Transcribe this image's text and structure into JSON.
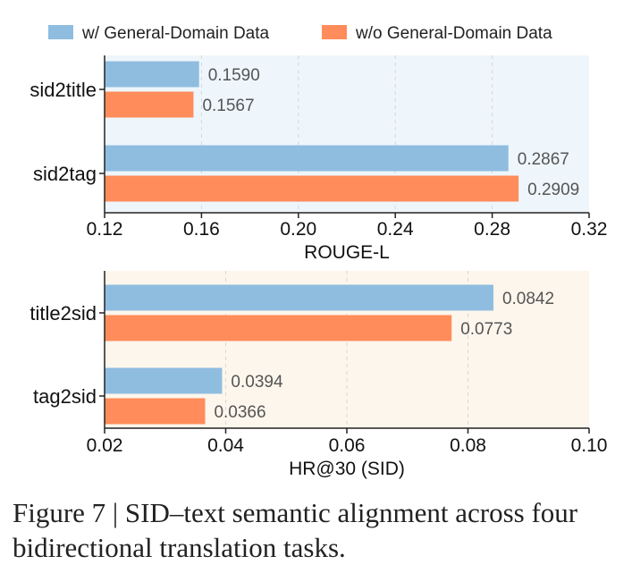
{
  "legend": {
    "items": [
      {
        "label": "w/ General-Domain Data",
        "color": "#8fbde0"
      },
      {
        "label": "w/o General-Domain Data",
        "color": "#ff8c5a"
      }
    ]
  },
  "caption": "Figure 7 | SID–text semantic alignment across four bidirectional translation tasks.",
  "colors": {
    "with": "#8fbde0",
    "without": "#ff8c5a",
    "panel_top_bg": "#eef6fc",
    "panel_bottom_bg": "#fdf6ec",
    "value_text": "#555555"
  },
  "chart_data": [
    {
      "type": "bar",
      "orientation": "horizontal",
      "categories": [
        "sid2title",
        "sid2tag"
      ],
      "series": [
        {
          "name": "w/ General-Domain Data",
          "values": [
            0.159,
            0.2867
          ]
        },
        {
          "name": "w/o General-Domain Data",
          "values": [
            0.1567,
            0.2909
          ]
        }
      ],
      "value_labels": [
        [
          "0.1590",
          "0.2867"
        ],
        [
          "0.1567",
          "0.2909"
        ]
      ],
      "xlabel": "ROUGE-L",
      "xlim": [
        0.12,
        0.32
      ],
      "xticks": [
        "0.12",
        "0.16",
        "0.20",
        "0.24",
        "0.28",
        "0.32"
      ],
      "grid": true,
      "legend": "top"
    },
    {
      "type": "bar",
      "orientation": "horizontal",
      "categories": [
        "title2sid",
        "tag2sid"
      ],
      "series": [
        {
          "name": "w/ General-Domain Data",
          "values": [
            0.0842,
            0.0394
          ]
        },
        {
          "name": "w/o General-Domain Data",
          "values": [
            0.0773,
            0.0366
          ]
        }
      ],
      "value_labels": [
        [
          "0.0842",
          "0.0394"
        ],
        [
          "0.0773",
          "0.0366"
        ]
      ],
      "xlabel": "HR@30 (SID)",
      "xlim": [
        0.02,
        0.1
      ],
      "xticks": [
        "0.02",
        "0.04",
        "0.06",
        "0.08",
        "0.10"
      ],
      "grid": true,
      "legend": "top"
    }
  ]
}
